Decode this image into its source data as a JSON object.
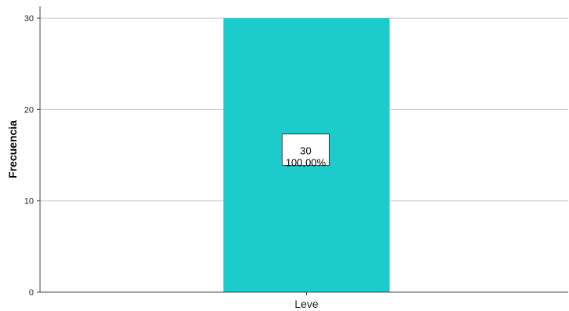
{
  "chart_data": {
    "type": "bar",
    "categories": [
      "Leve"
    ],
    "values": [
      30
    ],
    "data_labels": [
      {
        "count": "30",
        "percent": "100,00%"
      }
    ],
    "ylabel": "Frecuencia",
    "xlabel": "",
    "ylim": [
      0,
      31.3
    ],
    "yticks": [
      "0",
      "10",
      "20",
      "30"
    ],
    "grid": true,
    "bar_color": "#1ccccc"
  }
}
